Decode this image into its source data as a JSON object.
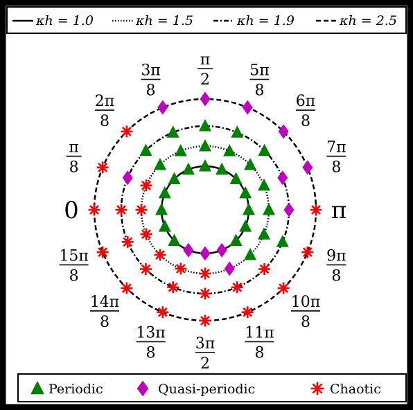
{
  "chart_data": {
    "type": "scatter",
    "projection": "polar",
    "angle_labels": [
      {
        "num": "",
        "den": "",
        "text": "0"
      },
      {
        "num": "π",
        "den": "8"
      },
      {
        "num": "2π",
        "den": "8"
      },
      {
        "num": "3π",
        "den": "8"
      },
      {
        "num": "π",
        "den": "2"
      },
      {
        "num": "5π",
        "den": "8"
      },
      {
        "num": "6π",
        "den": "8"
      },
      {
        "num": "7π",
        "den": "8"
      },
      {
        "num": "",
        "den": "",
        "text": "π"
      },
      {
        "num": "9π",
        "den": "8"
      },
      {
        "num": "10π",
        "den": "8"
      },
      {
        "num": "11π",
        "den": "8"
      },
      {
        "num": "3π",
        "den": "2"
      },
      {
        "num": "13π",
        "den": "8"
      },
      {
        "num": "14π",
        "den": "8"
      },
      {
        "num": "15π",
        "den": "8"
      }
    ],
    "series": [
      {
        "name": "κh = 1.0",
        "style": "solid",
        "radius_level": 1,
        "states": [
          "periodic",
          "periodic",
          "periodic",
          "periodic",
          "periodic",
          "periodic",
          "periodic",
          "periodic",
          "periodic",
          "periodic",
          "periodic",
          "quasi",
          "quasi",
          "quasi",
          "periodic",
          "periodic"
        ]
      },
      {
        "name": "κh = 1.5",
        "style": "dotted",
        "radius_level": 2,
        "states": [
          "chaotic",
          "chaotic",
          "periodic",
          "periodic",
          "periodic",
          "periodic",
          "periodic",
          "periodic",
          "periodic",
          "periodic",
          "periodic",
          "quasi",
          "chaotic",
          "chaotic",
          "chaotic",
          "chaotic"
        ]
      },
      {
        "name": "κh = 1.9",
        "style": "dashdot",
        "radius_level": 3,
        "states": [
          "chaotic",
          "quasi",
          "periodic",
          "periodic",
          "periodic",
          "periodic",
          "periodic",
          "quasi",
          "quasi",
          "periodic",
          "chaotic",
          "chaotic",
          "chaotic",
          "chaotic",
          "chaotic",
          "chaotic"
        ]
      },
      {
        "name": "κh = 2.5",
        "style": "dashed",
        "radius_level": 4,
        "states": [
          "chaotic",
          "chaotic",
          "chaotic",
          "quasi",
          "quasi",
          "quasi",
          "quasi",
          "quasi",
          "chaotic",
          "chaotic",
          "chaotic",
          "chaotic",
          "chaotic",
          "chaotic",
          "chaotic",
          "chaotic"
        ]
      }
    ],
    "markers": [
      {
        "key": "periodic",
        "label": "Periodic",
        "shape": "triangle",
        "color": "#008000"
      },
      {
        "key": "quasi",
        "label": "Quasi-periodic",
        "shape": "diamond",
        "color": "#BF00BF"
      },
      {
        "key": "chaotic",
        "label": "Chaotic",
        "shape": "star",
        "color": "#FF0000"
      }
    ],
    "legend_placement": "top",
    "marker_legend_placement": "bottom"
  }
}
